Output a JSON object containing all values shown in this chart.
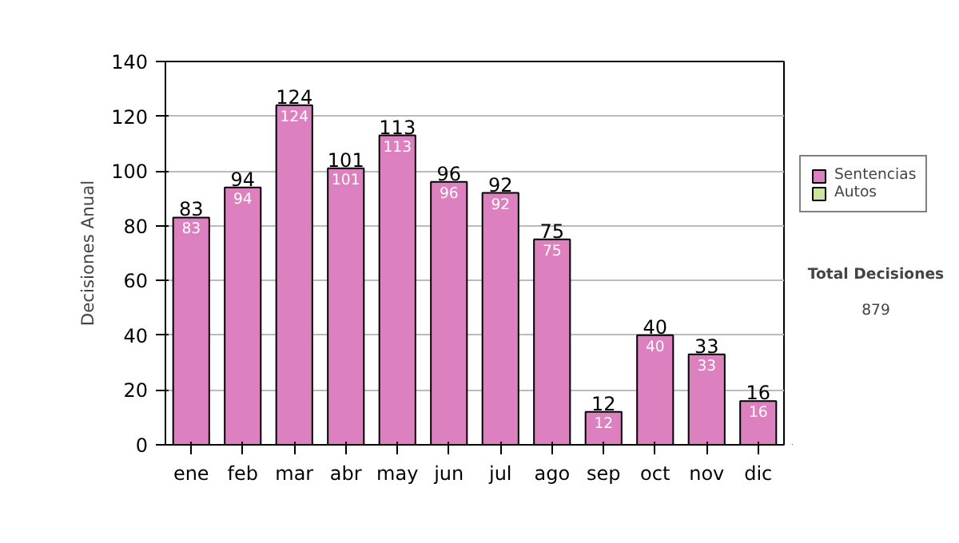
{
  "chart_data": {
    "type": "bar",
    "stacked": true,
    "ylabel": "Decisiones Anual",
    "categories": [
      "ene",
      "feb",
      "mar",
      "abr",
      "may",
      "jun",
      "jul",
      "ago",
      "sep",
      "oct",
      "nov",
      "dic"
    ],
    "series": [
      {
        "name": "Sentencias",
        "color": "#dd80bf",
        "values": [
          83,
          94,
          124,
          101,
          113,
          96,
          92,
          75,
          12,
          40,
          33,
          16
        ]
      },
      {
        "name": "Autos",
        "color": "#cce699",
        "values": [
          null,
          null,
          null,
          null,
          null,
          null,
          null,
          null,
          null,
          null,
          null,
          null
        ]
      }
    ],
    "data_labels": true,
    "totals": [
      "83",
      "94",
      "124",
      "101",
      "113",
      "96",
      "92",
      "75",
      "12",
      "40",
      "33",
      "16"
    ],
    "ylim": [
      0,
      140
    ],
    "yticks": [
      0,
      20,
      40,
      60,
      80,
      100,
      120,
      140
    ],
    "grid": "y",
    "legend": "right",
    "annotations": [
      "Total Decisiones",
      "879"
    ]
  }
}
